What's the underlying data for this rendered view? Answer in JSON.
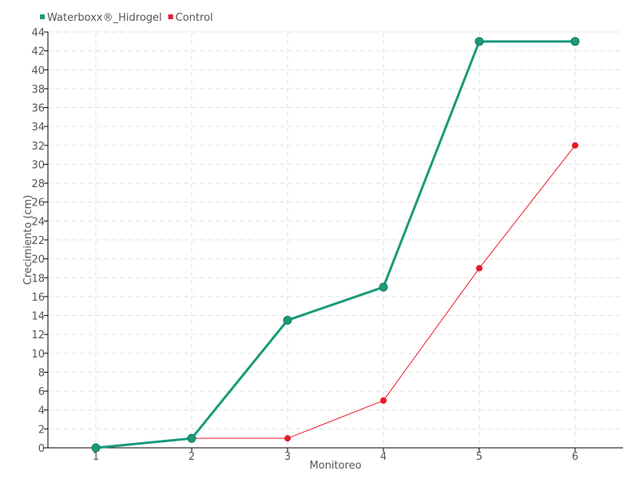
{
  "chart_data": {
    "type": "line",
    "title": "",
    "xlabel": "Monitoreo",
    "ylabel": "Crecimiento (cm)",
    "x": [
      1,
      2,
      3,
      4,
      5,
      6
    ],
    "xlim": [
      0.5,
      6.5
    ],
    "ylim": [
      0,
      44
    ],
    "yticks": [
      0,
      2,
      4,
      6,
      8,
      10,
      12,
      14,
      16,
      18,
      20,
      22,
      24,
      26,
      28,
      30,
      32,
      34,
      36,
      38,
      40,
      42,
      44
    ],
    "grid": true,
    "legend_position": "top-left",
    "series": [
      {
        "name": "Waterboxx®_Hidrogel",
        "color": "#1a9a7a",
        "values": [
          0,
          1,
          13.5,
          17,
          43,
          43
        ]
      },
      {
        "name": "Control",
        "color": "#e8192c",
        "values": [
          0,
          1,
          1,
          5,
          19,
          32
        ]
      }
    ]
  }
}
